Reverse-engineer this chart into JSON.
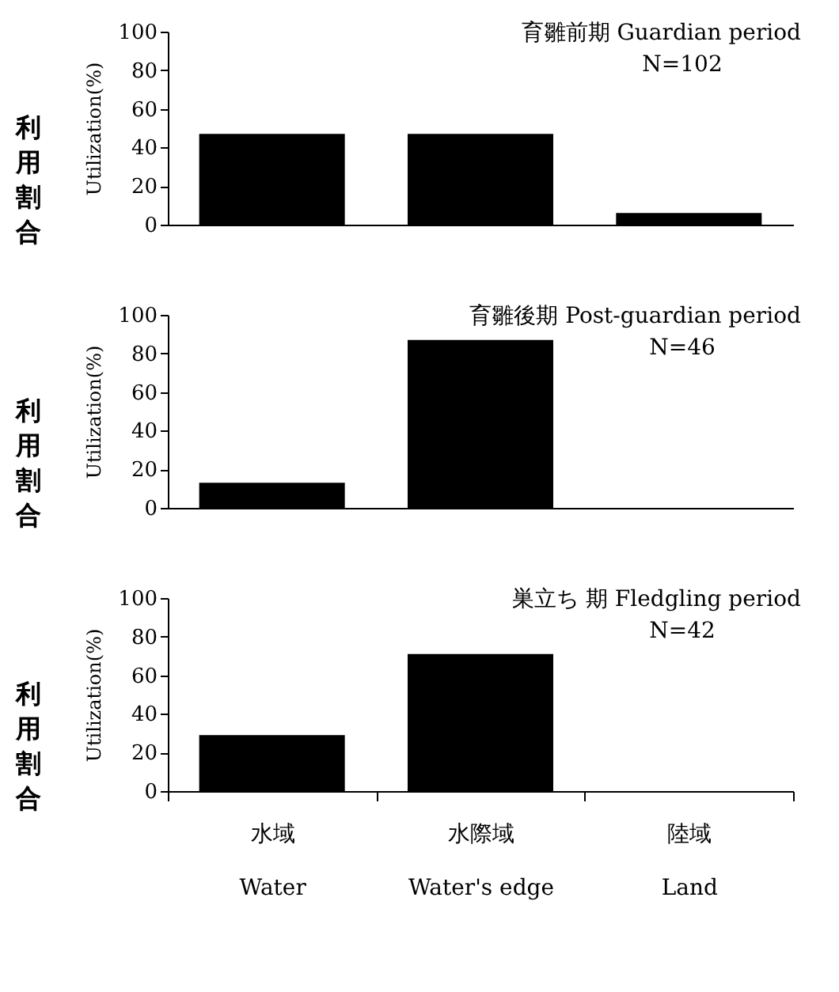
{
  "chart_data": [
    {
      "type": "bar",
      "title": "育雛前期 Guardian period",
      "subtitle": "N=102",
      "ylabel": "Utilization(%)",
      "annotations": [
        "利用割合"
      ],
      "categories": [
        null,
        null,
        null
      ],
      "values": [
        47,
        47,
        6
      ],
      "color": "#000000",
      "ylim": [
        0,
        100
      ],
      "yticks": [
        0,
        20,
        40,
        60,
        80,
        100
      ],
      "grid": false,
      "tick_labels": "y"
    },
    {
      "type": "bar",
      "title": "育雛後期 Post-guardian period",
      "subtitle": "N=46",
      "ylabel": "Utilization(%)",
      "annotations": [
        "利用割合"
      ],
      "categories": [
        null,
        null,
        null
      ],
      "values": [
        13,
        87,
        0
      ],
      "color": "#000000",
      "ylim": [
        0,
        100
      ],
      "yticks": [
        0,
        20,
        40,
        60,
        80,
        100
      ],
      "grid": false,
      "tick_labels": "y"
    },
    {
      "type": "bar",
      "title": "巣立ち 期 Fledgling period",
      "subtitle": "N=42",
      "ylabel": "Utilization(%)",
      "annotations": [
        "利用割合"
      ],
      "categories": [
        "水域\nWater",
        "水際域\nWater's edge",
        "陸域\nLand"
      ],
      "values": [
        29,
        71,
        0
      ],
      "color": "#000000",
      "ylim": [
        0,
        100
      ],
      "yticks": [
        0,
        20,
        40,
        60,
        80,
        100
      ],
      "grid": false
    }
  ]
}
